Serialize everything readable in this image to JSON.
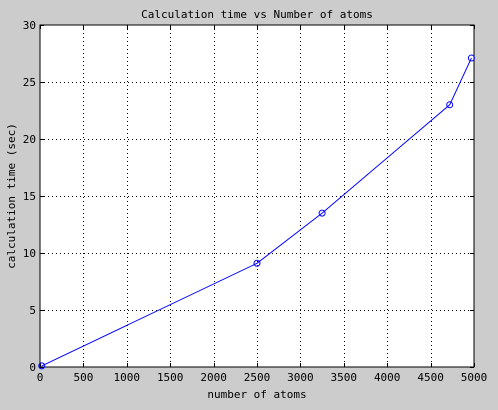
{
  "chart_data": {
    "type": "line",
    "title": "Calculation time vs Number of atoms",
    "xlabel": "number of atoms",
    "ylabel": "calculation time (sec)",
    "xlim": [
      0,
      5000
    ],
    "ylim": [
      0,
      30
    ],
    "xticks": [
      0,
      500,
      1000,
      1500,
      2000,
      2500,
      3000,
      3500,
      4000,
      4500,
      5000
    ],
    "yticks": [
      0,
      5,
      10,
      15,
      20,
      25,
      30
    ],
    "grid": true,
    "series": [
      {
        "x": [
          20,
          2500,
          3250,
          4720,
          4970
        ],
        "y": [
          0.1,
          9.1,
          13.5,
          23.0,
          27.1
        ],
        "color": "#0000ff",
        "marker": "circle"
      }
    ]
  },
  "colors": {
    "figure_background": "#cccccc",
    "axes_background": "#ffffff",
    "line": "#0000ff",
    "grid": "#000000"
  }
}
